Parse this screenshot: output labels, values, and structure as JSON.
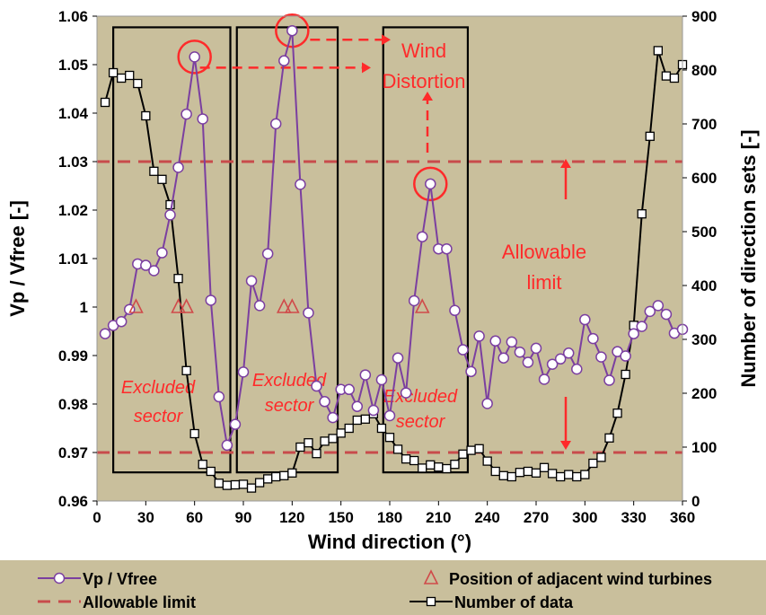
{
  "chart_data": {
    "type": "line",
    "title": "",
    "xlabel": "Wind direction (°)",
    "ylabel_left": "Vp / Vfree [-]",
    "ylabel_right": "Number of direction sets [-]",
    "xlim": [
      0,
      360
    ],
    "ylim_left": [
      0.96,
      1.06
    ],
    "ylim_right": [
      0,
      900
    ],
    "x_ticks": [
      0,
      30,
      60,
      90,
      120,
      150,
      180,
      210,
      240,
      270,
      300,
      330,
      360
    ],
    "y_ticks_left": [
      0.96,
      0.97,
      0.98,
      0.99,
      1,
      1.01,
      1.02,
      1.03,
      1.04,
      1.05,
      1.06
    ],
    "y_ticks_right": [
      0,
      100,
      200,
      300,
      400,
      500,
      600,
      700,
      800,
      900
    ],
    "series": [
      {
        "name": "Vp / Vfree",
        "axis": "left",
        "color": "#7b3fa0",
        "marker": "circle",
        "x": [
          5,
          10,
          15,
          20,
          25,
          30,
          35,
          40,
          45,
          50,
          55,
          60,
          65,
          70,
          75,
          80,
          85,
          90,
          95,
          100,
          105,
          110,
          115,
          120,
          125,
          130,
          135,
          140,
          145,
          150,
          155,
          160,
          165,
          170,
          175,
          180,
          185,
          190,
          195,
          200,
          205,
          210,
          215,
          220,
          225,
          230,
          235,
          240,
          245,
          250,
          255,
          260,
          265,
          270,
          275,
          280,
          285,
          290,
          295,
          300,
          305,
          310,
          315,
          320,
          325,
          330,
          335,
          340,
          345,
          350,
          355,
          360
        ],
        "y": [
          0.9945,
          0.9962,
          0.997,
          0.9995,
          1.0089,
          1.0086,
          1.0075,
          1.0112,
          1.019,
          1.0288,
          1.0398,
          1.0516,
          1.0388,
          1.0014,
          0.9815,
          0.9715,
          0.9758,
          0.9866,
          1.0054,
          1.0003,
          1.011,
          1.0378,
          1.0508,
          1.057,
          1.0253,
          0.9988,
          0.9837,
          0.9805,
          0.9772,
          0.983,
          0.983,
          0.9795,
          0.986,
          0.9787,
          0.985,
          0.9776,
          0.9895,
          0.9823,
          1.0013,
          1.0145,
          1.0254,
          1.012,
          1.012,
          0.9993,
          0.9912,
          0.9867,
          0.994,
          0.9801,
          0.993,
          0.9895,
          0.9928,
          0.9907,
          0.9886,
          0.9915,
          0.9851,
          0.9882,
          0.9893,
          0.9905,
          0.9872,
          0.9974,
          0.9935,
          0.9897,
          0.9849,
          0.9908,
          0.9899,
          0.9945,
          0.996,
          0.9991,
          1.0003,
          0.9985,
          0.9946,
          0.9954
        ]
      },
      {
        "name": "Number of data",
        "axis": "right",
        "color": "#000000",
        "marker": "square",
        "x": [
          5,
          10,
          15,
          20,
          25,
          30,
          35,
          40,
          45,
          50,
          55,
          60,
          65,
          70,
          75,
          80,
          85,
          90,
          95,
          100,
          105,
          110,
          115,
          120,
          125,
          130,
          135,
          140,
          145,
          150,
          155,
          160,
          165,
          170,
          175,
          180,
          185,
          190,
          195,
          200,
          205,
          210,
          215,
          220,
          225,
          230,
          235,
          240,
          245,
          250,
          255,
          260,
          265,
          270,
          275,
          280,
          285,
          290,
          295,
          300,
          305,
          310,
          315,
          320,
          325,
          330,
          335,
          340,
          345,
          350,
          355,
          360
        ],
        "y": [
          740,
          795,
          785,
          790,
          775,
          715,
          612,
          597,
          550,
          413,
          242,
          125,
          68,
          55,
          33,
          29,
          30,
          31,
          24,
          34,
          41,
          45,
          47,
          52,
          100,
          108,
          88,
          111,
          116,
          126,
          135,
          150,
          152,
          162,
          135,
          118,
          96,
          78,
          75,
          61,
          67,
          63,
          60,
          68,
          87,
          94,
          97,
          74,
          55,
          47,
          45,
          53,
          55,
          52,
          62,
          51,
          45,
          49,
          45,
          49,
          70,
          81,
          117,
          163,
          235,
          326,
          533,
          677,
          836,
          789,
          785,
          810
        ]
      }
    ],
    "allowable_limit": {
      "name": "Allowable limit",
      "color": "#c84b4b",
      "values": [
        0.97,
        1.03
      ]
    },
    "adjacent_turbines": {
      "name": "Position of adjacent wind turbines",
      "color": "#d04a4a",
      "x": [
        24,
        50,
        55,
        115,
        120,
        200
      ],
      "y": [
        1,
        1,
        1,
        1,
        1,
        1
      ]
    },
    "excluded_sectors": [
      [
        10,
        82
      ],
      [
        86,
        148
      ],
      [
        176,
        228
      ]
    ],
    "annotations": {
      "excluded_label": [
        "Excluded",
        "sector"
      ],
      "wind_distortion": [
        "Wind",
        "Distortion"
      ],
      "allowable_limit": [
        "Allowable",
        "limit"
      ]
    },
    "legend": {
      "placement": "bottom",
      "entries": [
        "Vp / Vfree",
        "Position of adjacent wind turbines",
        "Allowable limit",
        "Number of data"
      ]
    },
    "grid": false,
    "colors": {
      "plot_bg": "#c9bf9c",
      "annotation": "#ff2a2a"
    }
  }
}
